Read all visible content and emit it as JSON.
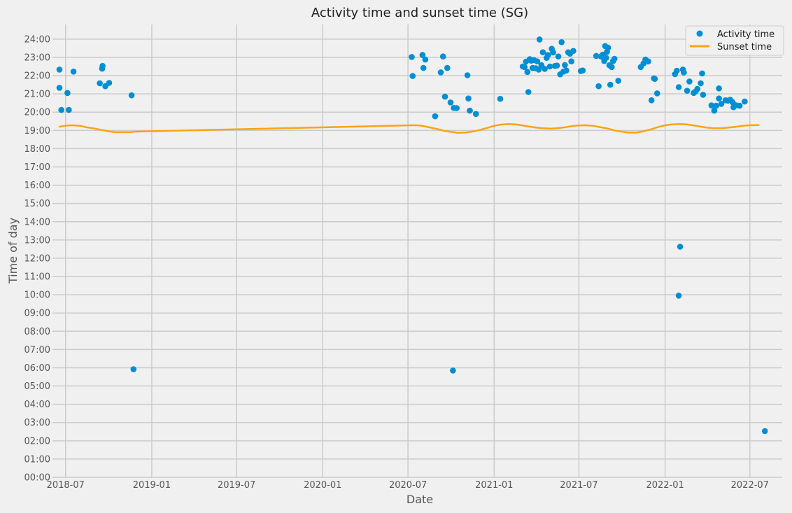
{
  "chart_data": {
    "type": "scatter",
    "title": "Activity time and sunset time (SG)",
    "xlabel": "Date",
    "ylabel": "Time of day",
    "xlim": [
      "2018-06-03",
      "2022-09-08"
    ],
    "ylim": [
      0,
      24.8
    ],
    "x_ticks": [
      "2018-07-01",
      "2019-01-01",
      "2019-07-01",
      "2020-01-01",
      "2020-07-01",
      "2021-01-01",
      "2021-07-01",
      "2022-01-01",
      "2022-07-01"
    ],
    "x_tick_labels": [
      "2018-07",
      "2019-01",
      "2019-07",
      "2020-01",
      "2020-07",
      "2021-01",
      "2021-07",
      "2022-01",
      "2022-07"
    ],
    "y_ticks": [
      0,
      1,
      2,
      3,
      4,
      5,
      6,
      7,
      8,
      9,
      10,
      11,
      12,
      13,
      14,
      15,
      16,
      17,
      18,
      19,
      20,
      21,
      22,
      23,
      24
    ],
    "y_tick_labels": [
      "00:00",
      "01:00",
      "02:00",
      "03:00",
      "04:00",
      "05:00",
      "06:00",
      "07:00",
      "08:00",
      "09:00",
      "10:00",
      "11:00",
      "12:00",
      "13:00",
      "14:00",
      "15:00",
      "16:00",
      "17:00",
      "18:00",
      "19:00",
      "20:00",
      "21:00",
      "22:00",
      "23:00",
      "24:00"
    ],
    "grid": true,
    "legend_position": "top-right",
    "colors": {
      "activity": "#008fd5",
      "sunset": "#fca311",
      "grid": "#cbcbcb",
      "background": "#f0f0f0"
    },
    "series": [
      {
        "name": "Activity time",
        "style": "markers",
        "points": [
          [
            "2018-06-18",
            22.33
          ],
          [
            "2018-06-18",
            21.33
          ],
          [
            "2018-06-22",
            20.12
          ],
          [
            "2018-07-05",
            21.05
          ],
          [
            "2018-07-08",
            20.12
          ],
          [
            "2018-07-18",
            22.22
          ],
          [
            "2018-09-12",
            21.58
          ],
          [
            "2018-09-17",
            22.38
          ],
          [
            "2018-09-18",
            22.53
          ],
          [
            "2018-09-24",
            21.42
          ],
          [
            "2018-10-02",
            21.6
          ],
          [
            "2018-11-19",
            20.92
          ],
          [
            "2018-11-23",
            5.92
          ],
          [
            "2020-07-09",
            23.02
          ],
          [
            "2020-07-11",
            21.98
          ],
          [
            "2020-08-01",
            23.13
          ],
          [
            "2020-08-03",
            22.42
          ],
          [
            "2020-08-07",
            22.88
          ],
          [
            "2020-08-28",
            19.77
          ],
          [
            "2020-09-09",
            22.18
          ],
          [
            "2020-09-14",
            23.05
          ],
          [
            "2020-09-18",
            20.85
          ],
          [
            "2020-09-23",
            22.42
          ],
          [
            "2020-09-30",
            20.53
          ],
          [
            "2020-10-05",
            5.85
          ],
          [
            "2020-10-07",
            20.23
          ],
          [
            "2020-10-13",
            20.22
          ],
          [
            "2020-11-05",
            22.02
          ],
          [
            "2020-11-07",
            20.75
          ],
          [
            "2020-11-10",
            20.08
          ],
          [
            "2020-11-23",
            19.9
          ],
          [
            "2021-01-14",
            20.73
          ],
          [
            "2021-03-03",
            22.5
          ],
          [
            "2021-03-07",
            22.47
          ],
          [
            "2021-03-10",
            22.77
          ],
          [
            "2021-03-13",
            22.2
          ],
          [
            "2021-03-15",
            21.1
          ],
          [
            "2021-03-18",
            22.9
          ],
          [
            "2021-03-21",
            22.82
          ],
          [
            "2021-03-24",
            22.42
          ],
          [
            "2021-03-27",
            22.85
          ],
          [
            "2021-03-31",
            22.4
          ],
          [
            "2021-04-03",
            22.78
          ],
          [
            "2021-04-06",
            22.33
          ],
          [
            "2021-04-08",
            23.98
          ],
          [
            "2021-04-12",
            22.57
          ],
          [
            "2021-04-15",
            23.28
          ],
          [
            "2021-04-19",
            22.37
          ],
          [
            "2021-04-23",
            22.97
          ],
          [
            "2021-04-26",
            23.13
          ],
          [
            "2021-04-30",
            22.5
          ],
          [
            "2021-05-04",
            23.47
          ],
          [
            "2021-05-07",
            23.27
          ],
          [
            "2021-05-11",
            22.53
          ],
          [
            "2021-05-15",
            22.55
          ],
          [
            "2021-05-18",
            23.05
          ],
          [
            "2021-05-22",
            22.07
          ],
          [
            "2021-05-25",
            23.83
          ],
          [
            "2021-05-29",
            22.22
          ],
          [
            "2021-06-01",
            22.58
          ],
          [
            "2021-06-04",
            22.28
          ],
          [
            "2021-06-08",
            23.28
          ],
          [
            "2021-06-12",
            23.2
          ],
          [
            "2021-06-15",
            22.78
          ],
          [
            "2021-06-19",
            23.35
          ],
          [
            "2021-07-05",
            22.25
          ],
          [
            "2021-07-09",
            22.28
          ],
          [
            "2021-08-07",
            23.08
          ],
          [
            "2021-08-12",
            21.42
          ],
          [
            "2021-08-17",
            23.05
          ],
          [
            "2021-08-21",
            23.15
          ],
          [
            "2021-08-24",
            22.8
          ],
          [
            "2021-08-26",
            23.62
          ],
          [
            "2021-08-28",
            22.97
          ],
          [
            "2021-08-30",
            23.3
          ],
          [
            "2021-09-01",
            23.53
          ],
          [
            "2021-09-04",
            22.57
          ],
          [
            "2021-09-06",
            21.5
          ],
          [
            "2021-09-09",
            22.47
          ],
          [
            "2021-09-12",
            22.8
          ],
          [
            "2021-09-15",
            22.92
          ],
          [
            "2021-09-23",
            21.72
          ],
          [
            "2021-11-10",
            22.47
          ],
          [
            "2021-11-16",
            22.67
          ],
          [
            "2021-11-20",
            22.88
          ],
          [
            "2021-11-26",
            22.78
          ],
          [
            "2021-12-03",
            20.65
          ],
          [
            "2021-12-08",
            21.85
          ],
          [
            "2021-12-10",
            21.82
          ],
          [
            "2021-12-15",
            21.03
          ],
          [
            "2022-01-22",
            22.08
          ],
          [
            "2022-01-26",
            22.27
          ],
          [
            "2022-01-30",
            21.37
          ],
          [
            "2022-01-30",
            9.95
          ],
          [
            "2022-02-02",
            12.63
          ],
          [
            "2022-02-08",
            22.33
          ],
          [
            "2022-02-10",
            22.17
          ],
          [
            "2022-02-17",
            21.17
          ],
          [
            "2022-02-22",
            21.68
          ],
          [
            "2022-03-03",
            21.05
          ],
          [
            "2022-03-07",
            21.13
          ],
          [
            "2022-03-11",
            21.27
          ],
          [
            "2022-03-18",
            21.58
          ],
          [
            "2022-03-21",
            22.12
          ],
          [
            "2022-03-23",
            20.95
          ],
          [
            "2022-04-10",
            20.37
          ],
          [
            "2022-04-16",
            20.08
          ],
          [
            "2022-04-20",
            20.35
          ],
          [
            "2022-04-26",
            21.3
          ],
          [
            "2022-04-26",
            20.75
          ],
          [
            "2022-05-01",
            20.45
          ],
          [
            "2022-05-10",
            20.65
          ],
          [
            "2022-05-15",
            20.63
          ],
          [
            "2022-05-20",
            20.68
          ],
          [
            "2022-05-25",
            20.55
          ],
          [
            "2022-05-27",
            20.27
          ],
          [
            "2022-06-01",
            20.38
          ],
          [
            "2022-06-09",
            20.35
          ],
          [
            "2022-06-20",
            20.58
          ],
          [
            "2022-08-02",
            2.53
          ]
        ]
      },
      {
        "name": "Sunset time",
        "style": "line",
        "points": [
          [
            "2018-06-18",
            19.2
          ],
          [
            "2018-07-01",
            19.26
          ],
          [
            "2018-07-15",
            19.28
          ],
          [
            "2018-08-01",
            19.25
          ],
          [
            "2018-08-15",
            19.17
          ],
          [
            "2018-09-01",
            19.1
          ],
          [
            "2018-09-15",
            19.03
          ],
          [
            "2018-10-01",
            18.95
          ],
          [
            "2018-10-15",
            18.9
          ],
          [
            "2018-11-01",
            18.9
          ],
          [
            "2018-11-19",
            18.9
          ],
          [
            "2018-11-23",
            18.93
          ],
          [
            "2020-07-09",
            19.28
          ],
          [
            "2020-07-20",
            19.28
          ],
          [
            "2020-08-01",
            19.25
          ],
          [
            "2020-08-15",
            19.17
          ],
          [
            "2020-09-01",
            19.08
          ],
          [
            "2020-09-15",
            18.98
          ],
          [
            "2020-10-01",
            18.92
          ],
          [
            "2020-10-15",
            18.87
          ],
          [
            "2020-11-01",
            18.88
          ],
          [
            "2020-11-23",
            18.97
          ],
          [
            "2020-12-15",
            19.12
          ],
          [
            "2021-01-01",
            19.25
          ],
          [
            "2021-01-15",
            19.32
          ],
          [
            "2021-02-01",
            19.35
          ],
          [
            "2021-02-15",
            19.33
          ],
          [
            "2021-03-01",
            19.28
          ],
          [
            "2021-03-15",
            19.22
          ],
          [
            "2021-04-01",
            19.15
          ],
          [
            "2021-04-15",
            19.12
          ],
          [
            "2021-05-01",
            19.1
          ],
          [
            "2021-05-15",
            19.12
          ],
          [
            "2021-06-01",
            19.17
          ],
          [
            "2021-06-15",
            19.23
          ],
          [
            "2021-07-01",
            19.27
          ],
          [
            "2021-07-15",
            19.28
          ],
          [
            "2021-08-01",
            19.25
          ],
          [
            "2021-08-15",
            19.18
          ],
          [
            "2021-09-01",
            19.1
          ],
          [
            "2021-09-15",
            19.0
          ],
          [
            "2021-10-01",
            18.93
          ],
          [
            "2021-10-15",
            18.88
          ],
          [
            "2021-11-01",
            18.88
          ],
          [
            "2021-11-15",
            18.95
          ],
          [
            "2021-12-01",
            19.05
          ],
          [
            "2021-12-15",
            19.17
          ],
          [
            "2022-01-01",
            19.28
          ],
          [
            "2022-01-15",
            19.33
          ],
          [
            "2022-02-01",
            19.35
          ],
          [
            "2022-02-15",
            19.33
          ],
          [
            "2022-03-01",
            19.28
          ],
          [
            "2022-03-15",
            19.22
          ],
          [
            "2022-04-01",
            19.15
          ],
          [
            "2022-04-15",
            19.12
          ],
          [
            "2022-05-01",
            19.12
          ],
          [
            "2022-05-15",
            19.15
          ],
          [
            "2022-06-01",
            19.2
          ],
          [
            "2022-06-15",
            19.25
          ],
          [
            "2022-07-01",
            19.28
          ],
          [
            "2022-07-20",
            19.29
          ]
        ]
      }
    ]
  }
}
